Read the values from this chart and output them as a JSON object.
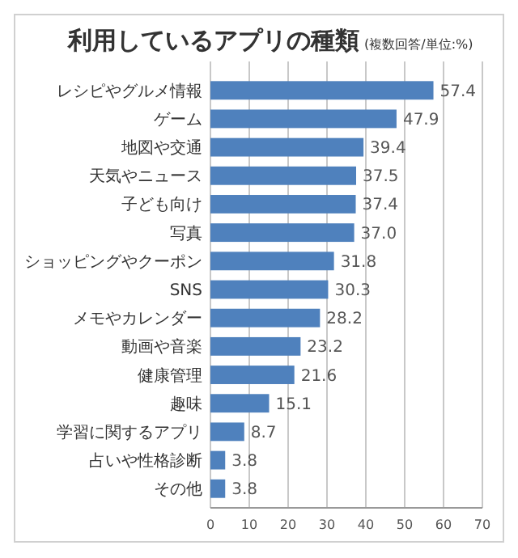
{
  "chart_data": {
    "type": "bar",
    "orientation": "horizontal",
    "title": "利用しているアプリの種類",
    "subtitle": "(複数回答/単位:%)",
    "categories": [
      "レシピやグルメ情報",
      "ゲーム",
      "地図や交通",
      "天気やニュース",
      "子ども向け",
      "写真",
      "ショッピングやクーポン",
      "SNS",
      "メモやカレンダー",
      "動画や音楽",
      "健康管理",
      "趣味",
      "学習に関するアプリ",
      "占いや性格診断",
      "その他"
    ],
    "values": [
      57.4,
      47.9,
      39.4,
      37.5,
      37.4,
      37.0,
      31.8,
      30.3,
      28.2,
      23.2,
      21.6,
      15.1,
      8.7,
      3.8,
      3.8
    ],
    "color": "#4f81bd",
    "xlim": [
      0,
      70
    ],
    "xticks": [
      0,
      10,
      20,
      30,
      40,
      50,
      60,
      70
    ],
    "grid": "x",
    "value_labels": [
      "57.4",
      "47.9",
      "39.4",
      "37.5",
      "37.4",
      "37.0",
      "31.8",
      "30.3",
      "28.2",
      "23.2",
      "21.6",
      "15.1",
      "8.7",
      "3.8",
      "3.8"
    ]
  }
}
